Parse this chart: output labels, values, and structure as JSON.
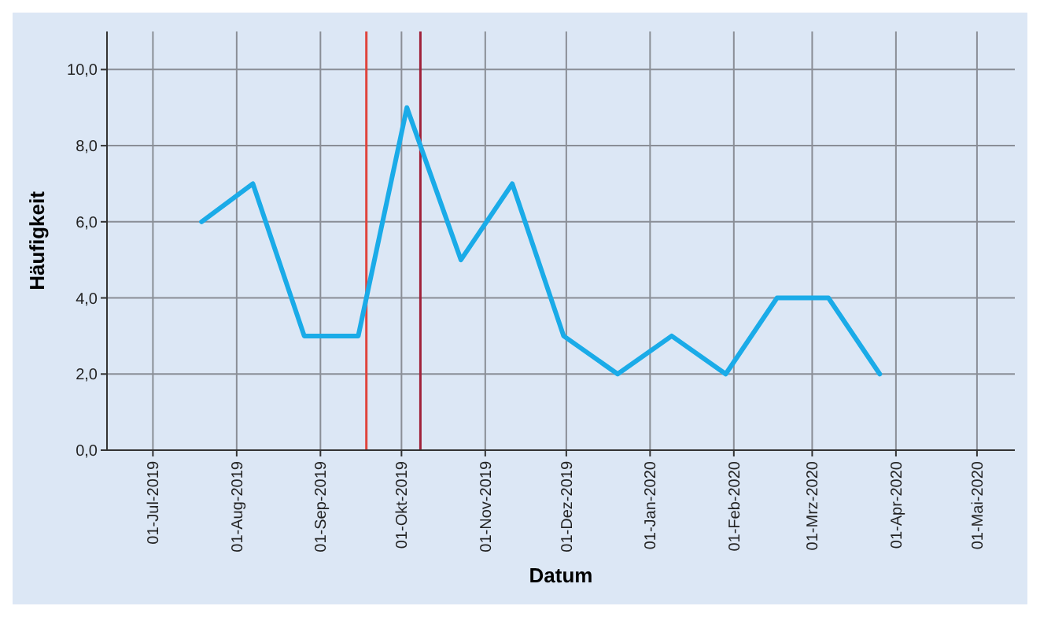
{
  "chart_data": {
    "type": "line",
    "xlabel": "Datum",
    "ylabel": "Häufigkeit",
    "x": [
      "2019-07-19",
      "2019-08-07",
      "2019-08-26",
      "2019-09-15",
      "2019-10-03",
      "2019-10-23",
      "2019-11-11",
      "2019-11-30",
      "2019-12-20",
      "2020-01-09",
      "2020-01-29",
      "2020-02-17",
      "2020-03-07",
      "2020-03-26"
    ],
    "series": [
      {
        "color": "#1aabe8",
        "values": [
          6,
          7,
          3,
          3,
          9,
          5,
          7,
          3,
          2,
          3,
          2,
          4,
          4,
          2
        ]
      }
    ],
    "xlim": [
      "2019-06-14",
      "2020-05-15"
    ],
    "xticks": [
      {
        "value": "2019-07-01",
        "label": "01-Jul-2019"
      },
      {
        "value": "2019-08-01",
        "label": "01-Aug-2019"
      },
      {
        "value": "2019-09-01",
        "label": "01-Sep-2019"
      },
      {
        "value": "2019-10-01",
        "label": "01-Okt-2019"
      },
      {
        "value": "2019-11-01",
        "label": "01-Nov-2019"
      },
      {
        "value": "2019-12-01",
        "label": "01-Dez-2019"
      },
      {
        "value": "2020-01-01",
        "label": "01-Jan-2020"
      },
      {
        "value": "2020-02-01",
        "label": "01-Feb-2020"
      },
      {
        "value": "2020-03-01",
        "label": "01-Mrz-2020"
      },
      {
        "value": "2020-04-01",
        "label": "01-Apr-2020"
      },
      {
        "value": "2020-05-01",
        "label": "01-Mai-2020"
      }
    ],
    "ylim": [
      0,
      11
    ],
    "yticks": [
      {
        "value": 0,
        "label": "0,0"
      },
      {
        "value": 2,
        "label": "2,0"
      },
      {
        "value": 4,
        "label": "4,0"
      },
      {
        "value": 6,
        "label": "6,0"
      },
      {
        "value": 8,
        "label": "8,0"
      },
      {
        "value": 10,
        "label": "10,0"
      }
    ],
    "grid": true,
    "ref_lines": [
      {
        "axis": "x",
        "value": "2019-09-18",
        "color": "#e0443c"
      },
      {
        "axis": "x",
        "value": "2019-10-08",
        "color": "#a0213a"
      }
    ]
  }
}
